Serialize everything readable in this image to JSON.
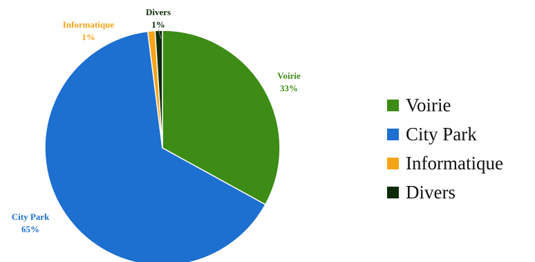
{
  "chart_data": {
    "type": "pie",
    "title": "",
    "categories": [
      "Voirie",
      "City Park",
      "Informatique",
      "Divers"
    ],
    "values": [
      33,
      65,
      1,
      1
    ],
    "value_labels": [
      "33%",
      "65%",
      "1%",
      "1%"
    ],
    "colors": [
      "#3c8c16",
      "#1d6fd0",
      "#f5a418",
      "#0e2a0a"
    ],
    "start": "12 o'clock, clockwise",
    "legend": {
      "placement": "right",
      "entries": [
        "Voirie",
        "City Park",
        "Informatique",
        "Divers"
      ]
    }
  }
}
